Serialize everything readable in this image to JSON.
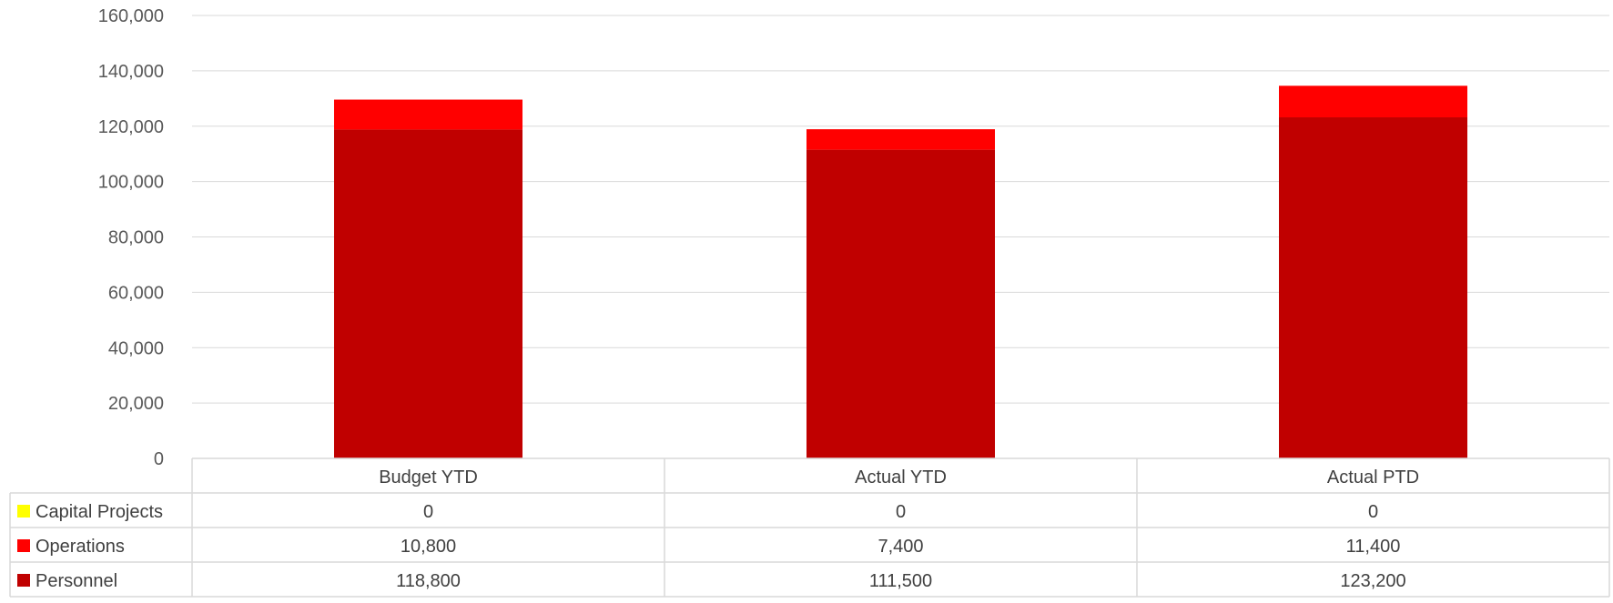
{
  "chart_data": {
    "type": "bar",
    "stacked": true,
    "categories": [
      "Budget YTD",
      "Actual YTD",
      "Actual PTD"
    ],
    "series": [
      {
        "name": "Capital Projects",
        "color": "#ffff00",
        "values": [
          0,
          0,
          0
        ],
        "labels": [
          "0",
          "0",
          "0"
        ]
      },
      {
        "name": "Operations",
        "color": "#ff0000",
        "values": [
          10800,
          7400,
          11400
        ],
        "labels": [
          "10,800",
          "7,400",
          "11,400"
        ]
      },
      {
        "name": "Personnel",
        "color": "#c00000",
        "values": [
          118800,
          111500,
          123200
        ],
        "labels": [
          "118,800",
          "111,500",
          "123,200"
        ]
      }
    ],
    "stack_order": [
      "Personnel",
      "Operations",
      "Capital Projects"
    ],
    "ylim": [
      0,
      160000
    ],
    "yticks": [
      0,
      20000,
      40000,
      60000,
      80000,
      100000,
      120000,
      140000,
      160000
    ],
    "ytick_labels": [
      "0",
      "20,000",
      "40,000",
      "60,000",
      "80,000",
      "100,000",
      "120,000",
      "140,000",
      "160,000"
    ],
    "grid": true,
    "legend": "data-table",
    "title": "",
    "xlabel": "",
    "ylabel": ""
  }
}
